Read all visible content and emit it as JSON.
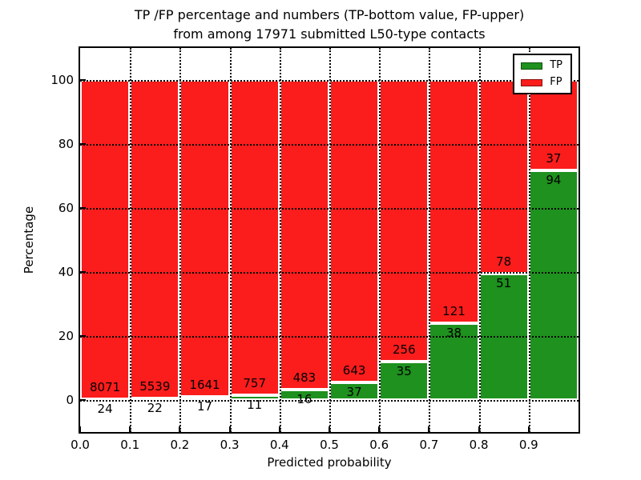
{
  "title": {
    "line1": "TP /FP percentage and numbers (TP-bottom value, FP-upper)",
    "line2": "from among 17971 submitted L50-type contacts"
  },
  "axes": {
    "xlabel": "Predicted probability",
    "ylabel": "Percentage",
    "yticks": [
      0,
      20,
      40,
      60,
      80,
      100
    ],
    "xtick_labels": [
      "0.0",
      "0.1",
      "0.2",
      "0.3",
      "0.4",
      "0.5",
      "0.6",
      "0.7",
      "0.8",
      "0.9"
    ]
  },
  "legend": {
    "items": [
      {
        "label": "TP",
        "color": "#1e911e"
      },
      {
        "label": "FP",
        "color": "#fb1c1c"
      }
    ]
  },
  "colors": {
    "tp_green": "#1e911e",
    "fp_red": "#fb1c1c",
    "bar_edge": "#ffffff",
    "grid": "#000000"
  },
  "chart_data": {
    "type": "bar",
    "stacked": true,
    "title": "TP /FP percentage and numbers (TP-bottom value, FP-upper) from among 17971 submitted L50-type contacts",
    "total_contacts": 17971,
    "xlabel": "Predicted probability",
    "ylabel": "Percentage",
    "xlim": [
      0.0,
      1.0
    ],
    "ylim": [
      -10,
      110
    ],
    "bin_width": 0.1,
    "grid": true,
    "legend_position": "upper right",
    "categories": [
      "0.0-0.1",
      "0.1-0.2",
      "0.2-0.3",
      "0.3-0.4",
      "0.4-0.5",
      "0.5-0.6",
      "0.6-0.7",
      "0.7-0.8",
      "0.8-0.9",
      "0.9-1.0"
    ],
    "series": [
      {
        "name": "TP",
        "color": "#1e911e",
        "counts": [
          24,
          22,
          17,
          11,
          16,
          37,
          35,
          38,
          51,
          94
        ],
        "percent_of_bin": [
          0.3,
          0.4,
          1.03,
          1.43,
          3.21,
          5.44,
          12.03,
          23.9,
          39.53,
          71.76
        ]
      },
      {
        "name": "FP",
        "color": "#fb1c1c",
        "counts": [
          8071,
          5539,
          1641,
          757,
          483,
          643,
          256,
          121,
          78,
          37
        ],
        "percent_of_bin": [
          99.7,
          99.6,
          98.97,
          98.57,
          96.79,
          94.56,
          87.97,
          76.1,
          60.47,
          28.24
        ]
      }
    ]
  }
}
